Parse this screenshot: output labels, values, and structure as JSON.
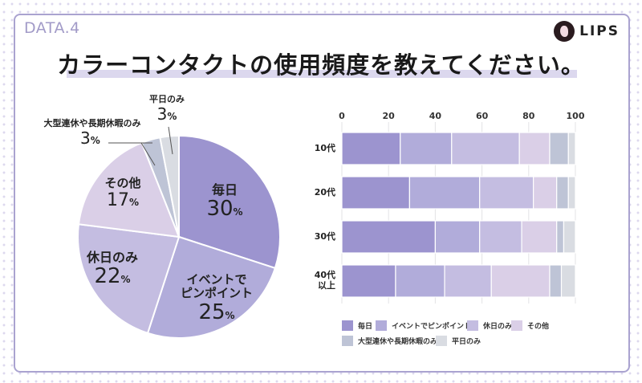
{
  "header": {
    "data_label": "DATA.4",
    "logo_text": "LIPS",
    "title": "カラーコンタクトの使用頻度を教えてください。"
  },
  "colors": {
    "毎日": "#9c94cf",
    "イベントでピンポイント": "#b1acda",
    "休日のみ": "#c4bde1",
    "その他": "#dacfe7",
    "大型連休や長期休暇のみ": "#bec4d6",
    "平日のみ": "#d9dce2",
    "frame": "#aaa3d0"
  },
  "chart_data": [
    {
      "type": "pie",
      "start": "top",
      "direction": "clockwise",
      "slices": [
        {
          "name": "毎日",
          "value": 30,
          "label_line1": "毎日",
          "value_text": "30",
          "unit": "%"
        },
        {
          "name": "イベントでピンポイント",
          "value": 25,
          "label_line1": "イベントで",
          "label_line2": "ピンポイント",
          "value_text": "25",
          "unit": "%"
        },
        {
          "name": "休日のみ",
          "value": 22,
          "label_line1": "休日のみ",
          "value_text": "22",
          "unit": "%"
        },
        {
          "name": "その他",
          "value": 17,
          "label_line1": "その他",
          "value_text": "17",
          "unit": "%"
        },
        {
          "name": "大型連休や長期休暇のみ",
          "value": 3,
          "label_line1": "大型連休や長期休暇のみ",
          "value_text": "3",
          "unit": "%"
        },
        {
          "name": "平日のみ",
          "value": 3,
          "label_line1": "平日のみ",
          "value_text": "3",
          "unit": "%"
        }
      ]
    },
    {
      "type": "bar",
      "orientation": "horizontal",
      "stacked": true,
      "xlim": [
        0,
        100
      ],
      "grid": true,
      "x_ticks": [
        "0",
        "20",
        "40",
        "60",
        "80",
        "100"
      ],
      "categories": [
        "10代",
        "20代",
        "30代",
        "40代以上"
      ],
      "category_lines": [
        [
          "10代"
        ],
        [
          "20代"
        ],
        [
          "30代"
        ],
        [
          "40代",
          "以上"
        ]
      ],
      "series": [
        {
          "name": "毎日",
          "values": [
            25,
            29,
            40,
            23
          ]
        },
        {
          "name": "イベントでピンポイント",
          "values": [
            22,
            30,
            19,
            21
          ]
        },
        {
          "name": "休日のみ",
          "values": [
            29,
            23,
            18,
            20
          ]
        },
        {
          "name": "その他",
          "values": [
            13,
            10,
            15,
            25
          ]
        },
        {
          "name": "大型連休や長期休暇のみ",
          "values": [
            8,
            5,
            3,
            5
          ]
        },
        {
          "name": "平日のみ",
          "values": [
            3,
            3,
            5,
            6
          ]
        }
      ],
      "legend": "bottom"
    }
  ]
}
